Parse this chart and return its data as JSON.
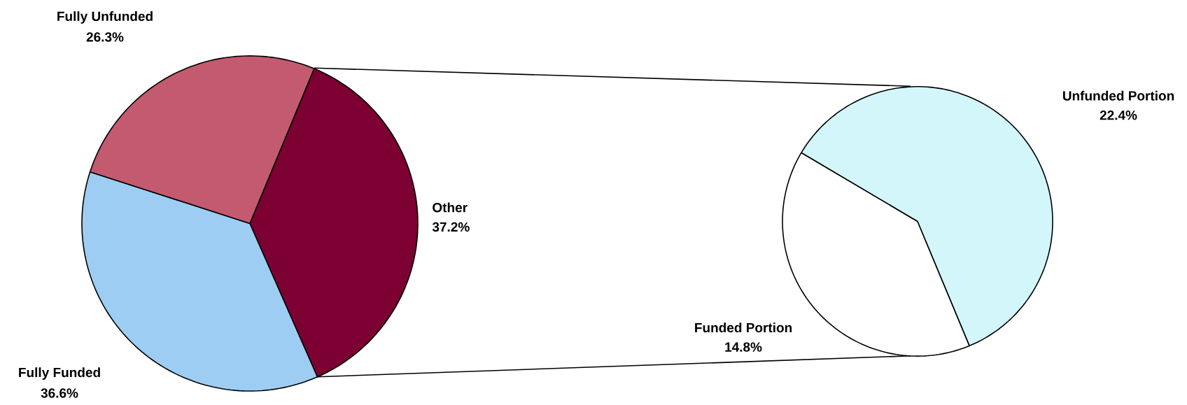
{
  "chart_data": [
    {
      "type": "pie",
      "categories": [
        "Other",
        "Fully Funded",
        "Fully Unfunded"
      ],
      "values": [
        37.2,
        36.6,
        26.3
      ],
      "colors": [
        "#7d0032",
        "#9dcdf2",
        "#c45a70"
      ],
      "value_labels": [
        "37.2%",
        "36.6%",
        "26.3%"
      ]
    },
    {
      "type": "pie",
      "categories": [
        "Funded Portion",
        "Unfunded Portion"
      ],
      "values": [
        14.8,
        22.4
      ],
      "colors": [
        "#ffffff",
        "#d2f6fa"
      ],
      "value_labels": [
        "14.8%",
        "22.4%"
      ]
    }
  ]
}
